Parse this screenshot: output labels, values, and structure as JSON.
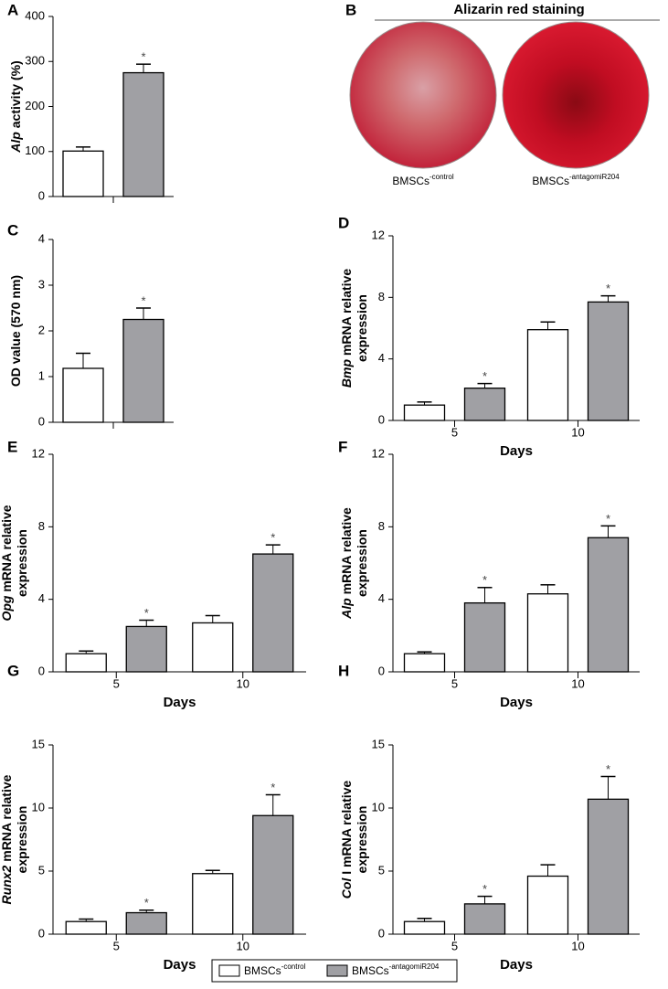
{
  "chart_data": [
    {
      "type": "bar",
      "label": "A",
      "ylabel_lines": [
        [
          {
            "text": "Alp",
            "italic": true
          },
          {
            "text": " activity (%)"
          }
        ]
      ],
      "categories": [
        null
      ],
      "series": [
        {
          "color": "#ffffff",
          "values": [
            101
          ],
          "errors": [
            9
          ]
        },
        {
          "color": "#a0a0a4",
          "values": [
            275
          ],
          "errors": [
            19
          ],
          "significance": [
            "*"
          ]
        }
      ],
      "ylim": [
        0,
        400
      ],
      "yticks": [
        0,
        100,
        200,
        300,
        400
      ]
    },
    {
      "type": "bar",
      "label": "C",
      "ylabel_lines": [
        [
          {
            "text": "OD value (570 nm)"
          }
        ]
      ],
      "categories": [
        null
      ],
      "series": [
        {
          "color": "#ffffff",
          "values": [
            1.18
          ],
          "errors": [
            0.33
          ]
        },
        {
          "color": "#a0a0a4",
          "values": [
            2.25
          ],
          "errors": [
            0.25
          ],
          "significance": [
            "*"
          ]
        }
      ],
      "ylim": [
        0,
        4
      ],
      "yticks": [
        0,
        1,
        2,
        3,
        4
      ]
    },
    {
      "type": "bar",
      "label": "D",
      "ylabel_lines": [
        [
          {
            "text": "Bmp",
            "italic": true
          },
          {
            "text": " mRNA relative"
          }
        ],
        [
          {
            "text": "expression"
          }
        ]
      ],
      "xlabel": "Days",
      "categories": [
        "5",
        "10"
      ],
      "series": [
        {
          "color": "#ffffff",
          "values": [
            1.0,
            5.9
          ],
          "errors": [
            0.2,
            0.5
          ]
        },
        {
          "color": "#a0a0a4",
          "values": [
            2.1,
            7.7
          ],
          "errors": [
            0.3,
            0.4
          ],
          "significance": [
            "*",
            "*"
          ]
        }
      ],
      "ylim": [
        0,
        12
      ],
      "yticks": [
        0,
        4,
        8,
        12
      ]
    },
    {
      "type": "bar",
      "label": "E",
      "ylabel_lines": [
        [
          {
            "text": "Opg",
            "italic": true
          },
          {
            "text": " mRNA relative"
          }
        ],
        [
          {
            "text": "expression"
          }
        ]
      ],
      "xlabel": "Days",
      "categories": [
        "5",
        "10"
      ],
      "series": [
        {
          "color": "#ffffff",
          "values": [
            1.0,
            2.7
          ],
          "errors": [
            0.15,
            0.4
          ]
        },
        {
          "color": "#a0a0a4",
          "values": [
            2.5,
            6.5
          ],
          "errors": [
            0.35,
            0.5
          ],
          "significance": [
            "*",
            "*"
          ]
        }
      ],
      "ylim": [
        0,
        12
      ],
      "yticks": [
        0,
        4,
        8,
        12
      ]
    },
    {
      "type": "bar",
      "label": "F",
      "ylabel_lines": [
        [
          {
            "text": "Alp",
            "italic": true
          },
          {
            "text": " mRNA relative"
          }
        ],
        [
          {
            "text": "expression"
          }
        ]
      ],
      "xlabel": "Days",
      "categories": [
        "5",
        "10"
      ],
      "series": [
        {
          "color": "#ffffff",
          "values": [
            1.0,
            4.3
          ],
          "errors": [
            0.1,
            0.5
          ]
        },
        {
          "color": "#a0a0a4",
          "values": [
            3.8,
            7.4
          ],
          "errors": [
            0.85,
            0.65
          ],
          "significance": [
            "*",
            "*"
          ]
        }
      ],
      "ylim": [
        0,
        12
      ],
      "yticks": [
        0,
        4,
        8,
        12
      ]
    },
    {
      "type": "bar",
      "label": "G",
      "ylabel_lines": [
        [
          {
            "text": "Runx2",
            "italic": true
          },
          {
            "text": " mRNA relative"
          }
        ],
        [
          {
            "text": "expression"
          }
        ]
      ],
      "xlabel": "Days",
      "categories": [
        "5",
        "10"
      ],
      "series": [
        {
          "color": "#ffffff",
          "values": [
            1.0,
            4.8
          ],
          "errors": [
            0.2,
            0.25
          ]
        },
        {
          "color": "#a0a0a4",
          "values": [
            1.7,
            9.4
          ],
          "errors": [
            0.2,
            1.65
          ],
          "significance": [
            "*",
            "*"
          ]
        }
      ],
      "ylim": [
        0,
        15
      ],
      "yticks": [
        0,
        5,
        10,
        15
      ]
    },
    {
      "type": "bar",
      "label": "H",
      "ylabel_lines": [
        [
          {
            "text": "Col",
            "italic": true
          },
          {
            "text": " I mRNA relative"
          }
        ],
        [
          {
            "text": "expression"
          }
        ]
      ],
      "xlabel": "Days",
      "categories": [
        "5",
        "10"
      ],
      "series": [
        {
          "color": "#ffffff",
          "values": [
            1.0,
            4.6
          ],
          "errors": [
            0.25,
            0.9
          ]
        },
        {
          "color": "#a0a0a4",
          "values": [
            2.4,
            10.7
          ],
          "errors": [
            0.6,
            1.8
          ],
          "significance": [
            "*",
            "*"
          ]
        }
      ],
      "ylim": [
        0,
        15
      ],
      "yticks": [
        0,
        5,
        10,
        15
      ]
    }
  ],
  "panel_b": {
    "label": "B",
    "title": "Alizarin red staining",
    "captions": [
      {
        "text": "BMSCs",
        "sup": "-control"
      },
      {
        "text": "BMSCs",
        "sup": "-antagomiR204"
      }
    ]
  },
  "legend": {
    "items": [
      {
        "text": "BMSCs",
        "sup": "-control"
      },
      {
        "text": "BMSCs",
        "sup": "-antagomiR204"
      }
    ]
  }
}
